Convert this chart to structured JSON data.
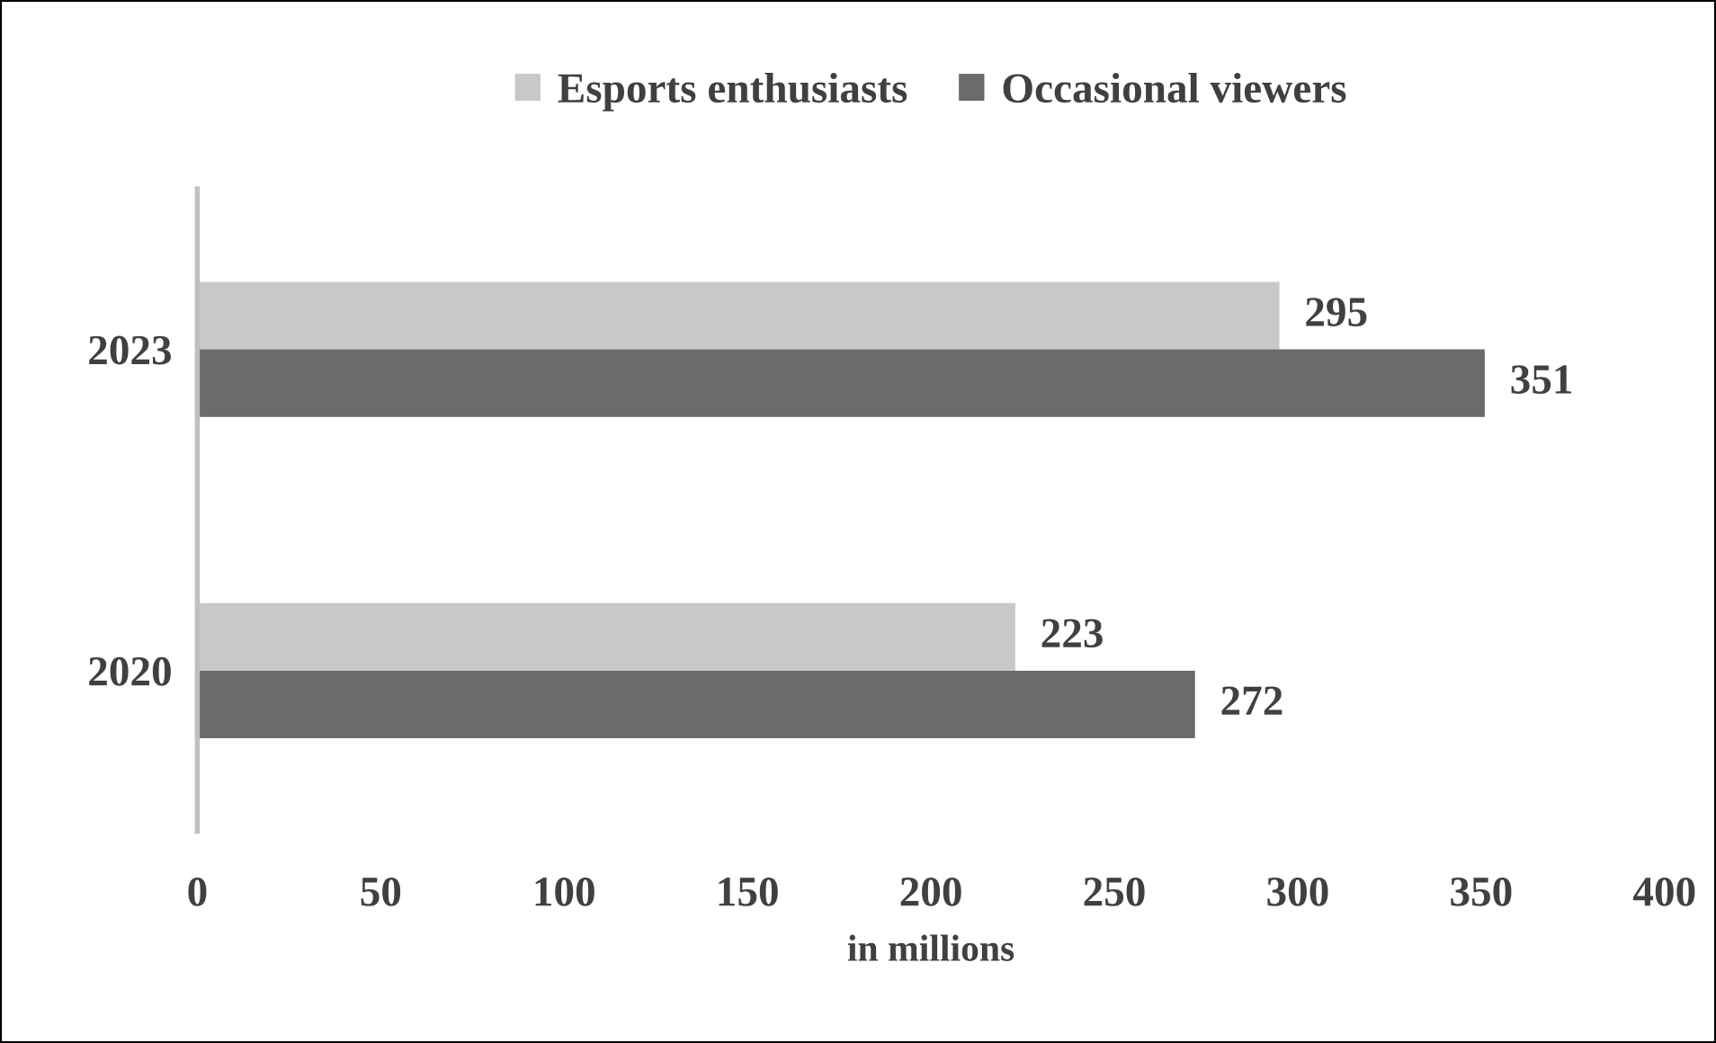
{
  "chart_data": {
    "type": "bar",
    "orientation": "horizontal",
    "categories": [
      "2023",
      "2020"
    ],
    "series": [
      {
        "name": "Esports enthusiasts",
        "color": "#c8c8c8",
        "values": [
          295,
          223
        ]
      },
      {
        "name": "Occasional viewers",
        "color": "#6b6b6b",
        "values": [
          351,
          272
        ]
      }
    ],
    "xlabel": "in millions",
    "xlim": [
      0,
      400
    ],
    "xticks": [
      0,
      50,
      100,
      150,
      200,
      250,
      300,
      350,
      400
    ],
    "data_labels": true,
    "legend": "top",
    "grid": false
  }
}
